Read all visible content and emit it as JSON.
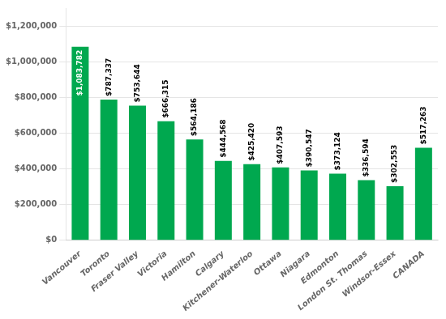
{
  "chart_data": {
    "type": "bar",
    "categories": [
      "Vancouver",
      "Toronto",
      "Fraser Valley",
      "Victoria",
      "Hamilton",
      "Calgary",
      "Kitchener-Waterloo",
      "Ottawa",
      "Niagara",
      "Edmonton",
      "London St. Thomas",
      "Windsor-Essex",
      "CANADA"
    ],
    "values": [
      1083782,
      787337,
      753644,
      666315,
      564186,
      444568,
      425420,
      407593,
      390547,
      373124,
      336594,
      302553,
      517263
    ],
    "value_labels": [
      "$1,083,782",
      "$787,337",
      "$753,644",
      "$666,315",
      "$564,186",
      "$444,568",
      "$425,420",
      "$407,593",
      "$390,547",
      "$373,124",
      "$336,594",
      "$302,553",
      "$517,263"
    ],
    "color": "#00a84f",
    "ylim": [
      0,
      1300000
    ],
    "yticks": [
      {
        "value": 0,
        "label": "$0"
      },
      {
        "value": 200000,
        "label": "$200,000"
      },
      {
        "value": 400000,
        "label": "$400,000"
      },
      {
        "value": 600000,
        "label": "$600,000"
      },
      {
        "value": 800000,
        "label": "$800,000"
      },
      {
        "value": 1000000,
        "label": "$1,000,000"
      },
      {
        "value": 1200000,
        "label": "$1,200,000"
      }
    ],
    "grid": true,
    "data_labels": true
  }
}
